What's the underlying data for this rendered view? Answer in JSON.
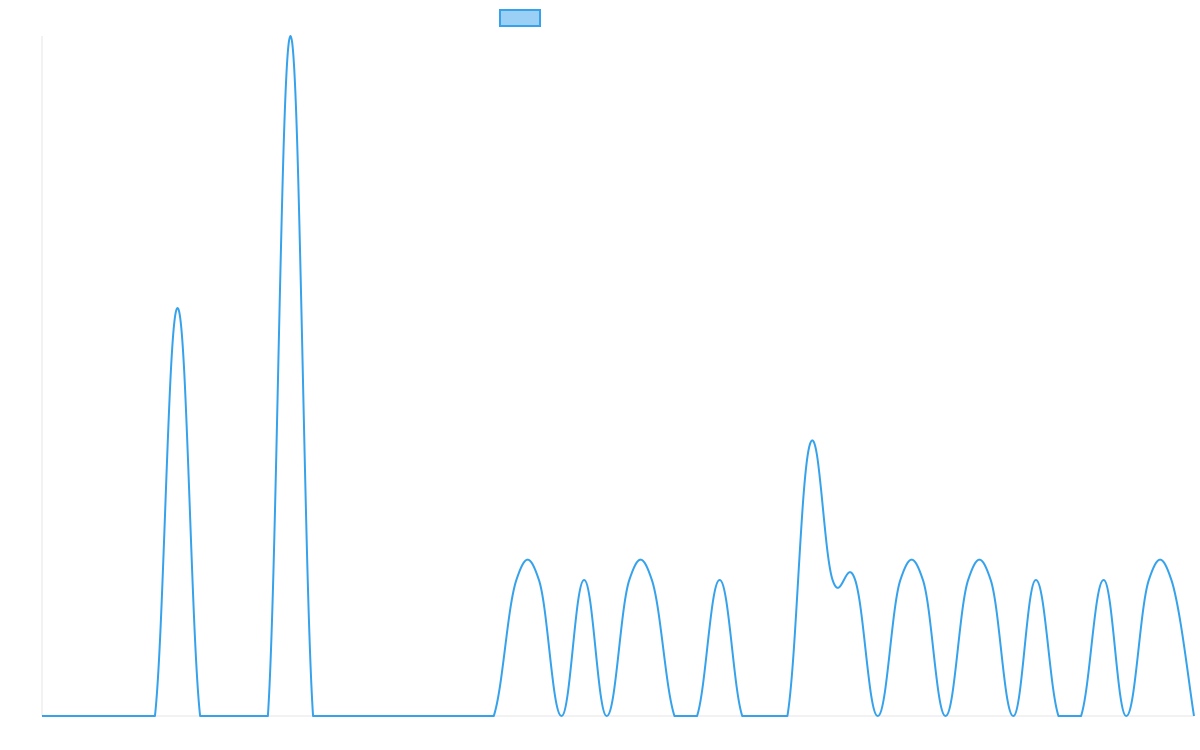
{
  "chart_data": {
    "type": "line",
    "title": "",
    "xlabel": "",
    "ylabel": "",
    "grid": false,
    "legend": {
      "placement": "top-center",
      "entries": [
        {
          "label": "",
          "color": "#36a2eb"
        }
      ]
    },
    "colors": {
      "line": "#36a2eb",
      "legend_fill": "#9ad0f5",
      "axis": "#e6e6e6"
    },
    "xlim": [
      0,
      51
    ],
    "ylim": [
      0,
      1.5
    ],
    "series": [
      {
        "name": "",
        "x": [
          0,
          1,
          2,
          3,
          4,
          5,
          6,
          7,
          8,
          9,
          10,
          11,
          12,
          13,
          14,
          15,
          16,
          17,
          18,
          19,
          20,
          21,
          22,
          23,
          24,
          25,
          26,
          27,
          28,
          29,
          30,
          31,
          32,
          33,
          34,
          35,
          36,
          37,
          38,
          39,
          40,
          41,
          42,
          43,
          44,
          45,
          46,
          47,
          48,
          49,
          50,
          51
        ],
        "values": [
          0,
          0,
          0,
          0,
          0,
          0,
          0.9,
          0,
          0,
          0,
          0,
          1.5,
          0,
          0,
          0,
          0,
          0,
          0,
          0,
          0,
          0,
          0.3,
          0.3,
          0,
          0.3,
          0,
          0.3,
          0.3,
          0,
          0,
          0.3,
          0,
          0,
          0,
          0.6,
          0.3,
          0.3,
          0,
          0.3,
          0.3,
          0,
          0.3,
          0.3,
          0,
          0.3,
          0,
          0,
          0.3,
          0,
          0.3,
          0.3,
          0
        ]
      }
    ]
  }
}
